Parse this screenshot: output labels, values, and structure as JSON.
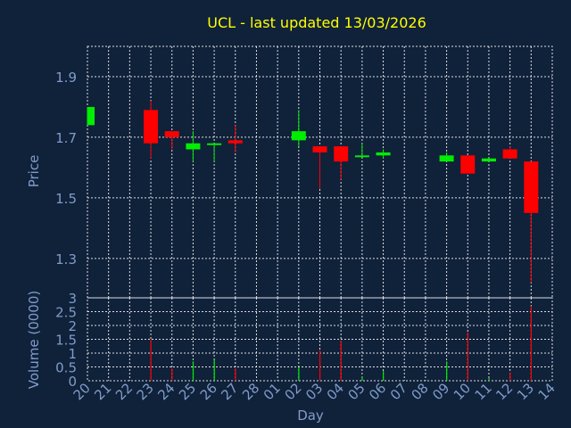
{
  "chart_data": {
    "type": "candlestick",
    "title": "UCL - last updated 13/03/2026",
    "xlabel": "Day",
    "colors": {
      "background": "#10213a",
      "title": "#ffff00",
      "axis_text": "#7f9cc9",
      "grid": "#ffffff",
      "up": "#00ee00",
      "down": "#ff0000"
    },
    "price_panel": {
      "ylabel": "Price",
      "ylim": [
        1.17,
        2.0
      ],
      "yticks": [
        "1.3",
        "1.5",
        "1.7",
        "1.9"
      ],
      "grid": true
    },
    "volume_panel": {
      "ylabel": "Volume (0000)",
      "ylim": [
        0,
        3
      ],
      "yticks": [
        "0",
        "0.5",
        "1",
        "1.5",
        "2",
        "2.5",
        "3"
      ],
      "grid": true
    },
    "days": [
      "20",
      "21",
      "22",
      "23",
      "24",
      "25",
      "26",
      "27",
      "28",
      "01",
      "02",
      "03",
      "04",
      "05",
      "06",
      "07",
      "08",
      "09",
      "10",
      "11",
      "12",
      "13",
      "14"
    ],
    "candles": [
      {
        "day": "20",
        "open": 1.74,
        "high": 1.8,
        "low": 1.74,
        "close": 1.8,
        "volume": 0
      },
      {
        "day": "23",
        "open": 1.79,
        "high": 1.82,
        "low": 1.63,
        "close": 1.68,
        "volume": 1.5
      },
      {
        "day": "24",
        "open": 1.72,
        "high": 1.72,
        "low": 1.66,
        "close": 1.7,
        "volume": 0.45
      },
      {
        "day": "25",
        "open": 1.66,
        "high": 1.72,
        "low": 1.62,
        "close": 1.68,
        "volume": 0.7
      },
      {
        "day": "26",
        "open": 1.68,
        "high": 1.68,
        "low": 1.62,
        "close": 1.68,
        "volume": 0.75
      },
      {
        "day": "27",
        "open": 1.69,
        "high": 1.74,
        "low": 1.65,
        "close": 1.68,
        "volume": 0.45
      },
      {
        "day": "02",
        "open": 1.69,
        "high": 1.79,
        "low": 1.67,
        "close": 1.72,
        "volume": 0.5
      },
      {
        "day": "03",
        "open": 1.67,
        "high": 1.67,
        "low": 1.53,
        "close": 1.65,
        "volume": 1.1
      },
      {
        "day": "04",
        "open": 1.67,
        "high": 1.67,
        "low": 1.56,
        "close": 1.62,
        "volume": 1.45
      },
      {
        "day": "05",
        "open": 1.64,
        "high": 1.68,
        "low": 1.64,
        "close": 1.64,
        "volume": 0.15
      },
      {
        "day": "06",
        "open": 1.64,
        "high": 1.66,
        "low": 1.63,
        "close": 1.65,
        "volume": 0.35
      },
      {
        "day": "09",
        "open": 1.62,
        "high": 1.65,
        "low": 1.62,
        "close": 1.64,
        "volume": 0.7
      },
      {
        "day": "10",
        "open": 1.64,
        "high": 1.64,
        "low": 1.58,
        "close": 1.58,
        "volume": 1.75
      },
      {
        "day": "11",
        "open": 1.62,
        "high": 1.63,
        "low": 1.62,
        "close": 1.63,
        "volume": 0.1
      },
      {
        "day": "12",
        "open": 1.66,
        "high": 1.67,
        "low": 1.63,
        "close": 1.63,
        "volume": 0.3
      },
      {
        "day": "13",
        "open": 1.62,
        "high": 1.62,
        "low": 1.22,
        "close": 1.45,
        "volume": 2.7
      }
    ]
  }
}
